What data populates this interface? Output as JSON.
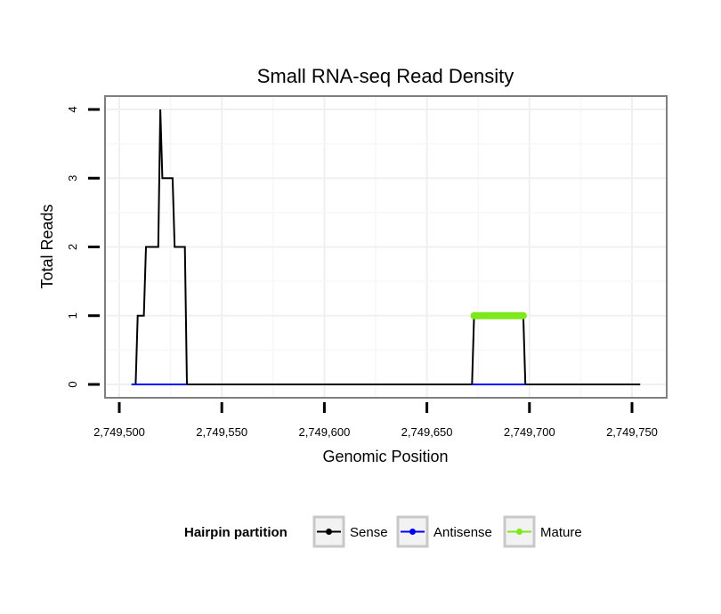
{
  "chart_data": {
    "type": "line",
    "title": "Small RNA-seq Read Density",
    "xlabel": "Genomic Position",
    "ylabel": "Total Reads",
    "xlim": [
      2749495,
      2749755
    ],
    "ylim": [
      -0.2,
      4.2
    ],
    "x_ticks": [
      2749500,
      2749550,
      2749600,
      2749650,
      2749700,
      2749750
    ],
    "x_tick_labels": [
      "2,749,500",
      "2,749,550",
      "2,749,600",
      "2,749,650",
      "2,749,700",
      "2,749,750"
    ],
    "y_ticks": [
      0,
      1,
      2,
      3,
      4
    ],
    "y_tick_labels": [
      "0",
      "1",
      "2",
      "3",
      "4"
    ],
    "grid": true,
    "legend": {
      "title": "Hairpin partition",
      "position": "bottom",
      "entries": [
        {
          "label": "Sense",
          "color": "#000000"
        },
        {
          "label": "Antisense",
          "color": "#0000ff"
        },
        {
          "label": "Mature",
          "color": "#7fe81a"
        }
      ]
    },
    "series": [
      {
        "name": "Sense",
        "color": "#000000",
        "x": [
          2749506,
          2749508,
          2749509,
          2749512,
          2749513,
          2749519,
          2749520,
          2749521,
          2749522,
          2749526,
          2749527,
          2749532,
          2749533,
          2749538,
          2749539,
          2749672,
          2749673,
          2749697,
          2749698,
          2749754
        ],
        "y": [
          0,
          0,
          1,
          1,
          2,
          2,
          4,
          3,
          3,
          3,
          2,
          2,
          0,
          0,
          0,
          0,
          1,
          1,
          0,
          0
        ]
      },
      {
        "name": "Antisense",
        "color": "#0000ff",
        "x": [
          2749506,
          2749533,
          2749672,
          2749698
        ],
        "y": [
          0,
          0,
          0,
          0
        ],
        "segments": [
          [
            2749506,
            2749533
          ],
          [
            2749672,
            2749698
          ]
        ]
      },
      {
        "name": "Mature",
        "color": "#7fe81a",
        "x": [
          2749673,
          2749697
        ],
        "y": [
          1,
          1
        ]
      }
    ]
  }
}
